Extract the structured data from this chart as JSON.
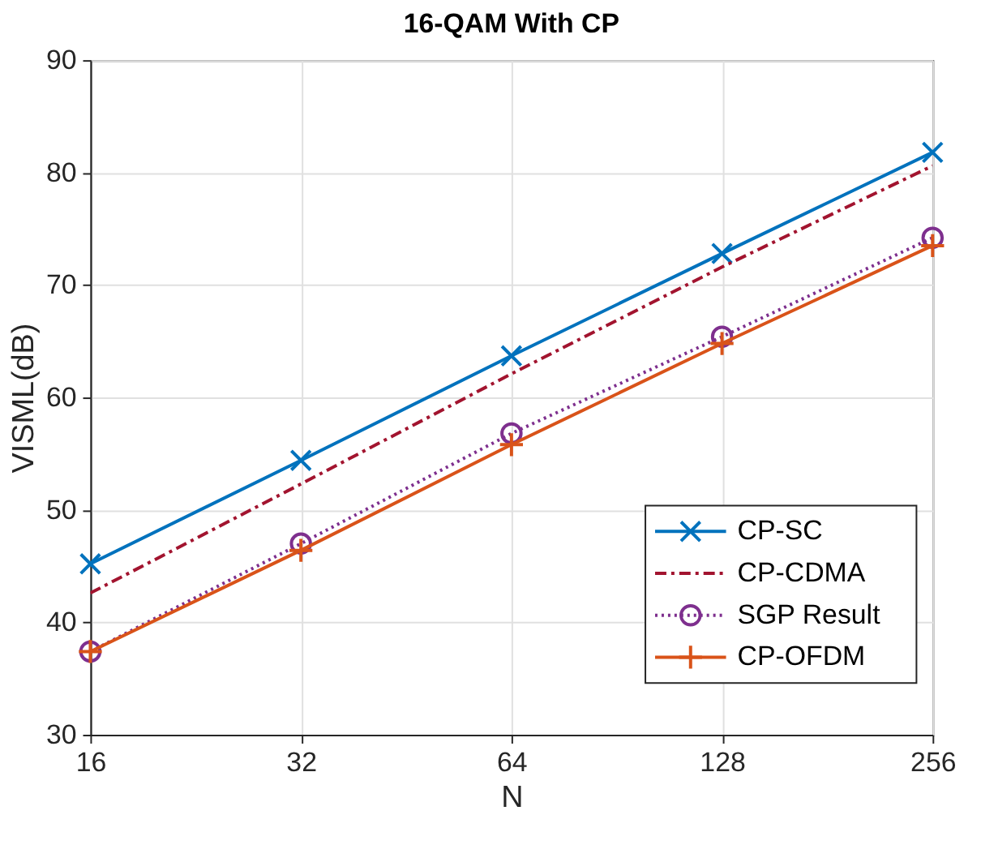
{
  "chart_data": {
    "type": "line",
    "title": "16-QAM With CP",
    "xlabel": "N",
    "ylabel": "VISML(dB)",
    "x": [
      16,
      32,
      64,
      128,
      256
    ],
    "series": [
      {
        "name": "CP-SC",
        "color": "#0072bd",
        "marker": "cross",
        "line_style": "solid",
        "values": [
          45.2,
          54.4,
          63.7,
          72.8,
          81.8
        ]
      },
      {
        "name": "CP-CDMA",
        "color": "#a2142f",
        "marker": "none",
        "line_style": "dashed",
        "values": [
          42.6,
          52.3,
          62.1,
          71.6,
          80.6
        ]
      },
      {
        "name": "SGP Result",
        "color": "#7e2f8e",
        "marker": "circle",
        "line_style": "dotted",
        "values": [
          37.4,
          47.0,
          56.8,
          65.4,
          74.2
        ]
      },
      {
        "name": "CP-OFDM",
        "color": "#d95319",
        "marker": "plus",
        "line_style": "solid",
        "values": [
          37.4,
          46.4,
          55.8,
          64.8,
          73.5
        ]
      }
    ],
    "log": "x",
    "xlim": [
      16,
      256
    ],
    "xticks": [
      16,
      32,
      64,
      128,
      256
    ],
    "ylim": [
      30,
      90
    ],
    "yticks": [
      30,
      40,
      50,
      60,
      70,
      80,
      90
    ],
    "grid": true,
    "legend": "bottom right"
  }
}
